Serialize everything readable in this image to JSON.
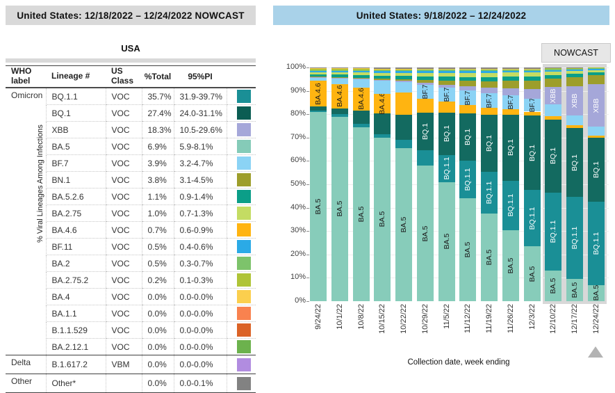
{
  "left_panel": {
    "header": "United States: 12/18/2022 – 12/24/2022 NOWCAST",
    "table_title": "USA",
    "columns": [
      "WHO label",
      "Lineage #",
      "US Class",
      "%Total",
      "95%PI",
      ""
    ],
    "rows": [
      {
        "who": "Omicron",
        "who_rowspan": 16,
        "lineage": "BQ.1.1",
        "us_class": "VOC",
        "total": "35.7%",
        "pi": "31.9-39.7%",
        "color": "#1A8F96",
        "group_start": true
      },
      {
        "lineage": "BQ.1",
        "us_class": "VOC",
        "total": "27.4%",
        "pi": "24.0-31.1%",
        "color": "#0B5D53"
      },
      {
        "lineage": "XBB",
        "us_class": "VOC",
        "total": "18.3%",
        "pi": "10.5-29.6%",
        "color": "#A5A7D9"
      },
      {
        "lineage": "BA.5",
        "us_class": "VOC",
        "total": "6.9%",
        "pi": "5.9-8.1%",
        "color": "#85CBB8"
      },
      {
        "lineage": "BF.7",
        "us_class": "VOC",
        "total": "3.9%",
        "pi": "3.2-4.7%",
        "color": "#8BD3F5"
      },
      {
        "lineage": "BN.1",
        "us_class": "VOC",
        "total": "3.8%",
        "pi": "3.1-4.5%",
        "color": "#9D9E2B"
      },
      {
        "lineage": "BA.5.2.6",
        "us_class": "VOC",
        "total": "1.1%",
        "pi": "0.9-1.4%",
        "color": "#0B9E88"
      },
      {
        "lineage": "BA.2.75",
        "us_class": "VOC",
        "total": "1.0%",
        "pi": "0.7-1.3%",
        "color": "#C4DC63"
      },
      {
        "lineage": "BA.4.6",
        "us_class": "VOC",
        "total": "0.7%",
        "pi": "0.6-0.9%",
        "color": "#FFB411"
      },
      {
        "lineage": "BF.11",
        "us_class": "VOC",
        "total": "0.5%",
        "pi": "0.4-0.6%",
        "color": "#2BAAE6"
      },
      {
        "lineage": "BA.2",
        "us_class": "VOC",
        "total": "0.5%",
        "pi": "0.3-0.7%",
        "color": "#7DC36B"
      },
      {
        "lineage": "BA.2.75.2",
        "us_class": "VOC",
        "total": "0.2%",
        "pi": "0.1-0.3%",
        "color": "#AFC437"
      },
      {
        "lineage": "BA.4",
        "us_class": "VOC",
        "total": "0.0%",
        "pi": "0.0-0.0%",
        "color": "#FBCF4E"
      },
      {
        "lineage": "BA.1.1",
        "us_class": "VOC",
        "total": "0.0%",
        "pi": "0.0-0.0%",
        "color": "#F9824F"
      },
      {
        "lineage": "B.1.1.529",
        "us_class": "VOC",
        "total": "0.0%",
        "pi": "0.0-0.0%",
        "color": "#DB6327"
      },
      {
        "lineage": "BA.2.12.1",
        "us_class": "VOC",
        "total": "0.0%",
        "pi": "0.0-0.0%",
        "color": "#6CB24D"
      },
      {
        "who": "Delta",
        "who_rowspan": 1,
        "lineage": "B.1.617.2",
        "us_class": "VBM",
        "total": "0.0%",
        "pi": "0.0-0.0%",
        "color": "#B18CE0",
        "group_start": true
      },
      {
        "who": "Other",
        "who_rowspan": 1,
        "lineage": "Other*",
        "us_class": "",
        "total": "0.0%",
        "pi": "0.0-0.1%",
        "color": "#828282",
        "group_start": true
      }
    ]
  },
  "right_panel": {
    "header": "United States: 9/18/2022 – 12/24/2022",
    "nowcast_label": "NOWCAST",
    "chart_data": {
      "type": "bar",
      "subtype": "stacked-100pct",
      "title": "United States: 9/18/2022 – 12/24/2022",
      "xlabel": "Collection date, week ending",
      "ylabel": "% Viral Lineages Among Infections",
      "ylim": [
        0,
        100
      ],
      "ytick_labels": [
        "0%",
        "10%",
        "20%",
        "30%",
        "40%",
        "50%",
        "60%",
        "70%",
        "80%",
        "90%",
        "100%"
      ],
      "grid": true,
      "categories": [
        "9/24/22",
        "10/1/22",
        "10/8/22",
        "10/15/22",
        "10/22/22",
        "10/29/22",
        "11/5/22",
        "11/12/22",
        "11/19/22",
        "11/26/22",
        "12/3/22",
        "12/10/22",
        "12/17/22",
        "12/24/22"
      ],
      "nowcast_week_indexes": [
        11,
        12,
        13
      ],
      "stack_order": "bottom to top as listed",
      "series": [
        {
          "name": "BA.5",
          "color": "#87CCBA",
          "label_color": "#1a1a1a",
          "label_weeks": [
            0,
            1,
            2,
            3,
            4,
            5,
            6,
            7,
            8,
            9,
            10,
            11,
            12,
            13
          ],
          "values": [
            81.0,
            79.0,
            74.5,
            70.0,
            65.5,
            58.0,
            51.0,
            44.0,
            37.5,
            30.5,
            23.5,
            13.0,
            9.5,
            6.9
          ]
        },
        {
          "name": "BQ.1.1",
          "color": "#1A8F96",
          "label_color": "#ffffff",
          "label_weeks": [
            6,
            7,
            8,
            9,
            10,
            11,
            12,
            13
          ],
          "values": [
            0.5,
            1.0,
            1.5,
            1.5,
            3.5,
            6.5,
            11.5,
            16.0,
            18.0,
            21.0,
            24.0,
            33.5,
            35.0,
            35.7
          ]
        },
        {
          "name": "BQ.1",
          "color": "#136A60",
          "label_color": "#ffffff",
          "label_weeks": [
            5,
            6,
            7,
            8,
            9,
            10,
            11,
            12,
            13
          ],
          "values": [
            1.7,
            2.5,
            5.5,
            8.8,
            10.8,
            16.2,
            18.3,
            20.4,
            24.4,
            28.3,
            31.9,
            31.3,
            29.7,
            27.4
          ]
        },
        {
          "name": "BA.4.6",
          "color": "#FFB411",
          "label_color": "#1a1a1a",
          "label_weeks": [
            0,
            1,
            2,
            3
          ],
          "values": [
            11.0,
            10.5,
            10.0,
            8.3,
            9.5,
            6.0,
            4.5,
            3.5,
            2.8,
            2.2,
            1.7,
            1.3,
            1.0,
            0.7
          ]
        },
        {
          "name": "BF.7",
          "color": "#8BD3F5",
          "label_color": "#1a1a1a",
          "label_weeks": [
            5,
            6,
            7,
            8,
            9,
            10
          ],
          "values": [
            1.5,
            2.5,
            3.5,
            5.7,
            4.5,
            6.0,
            6.0,
            6.2,
            6.2,
            6.0,
            5.5,
            5.0,
            4.4,
            3.9
          ]
        },
        {
          "name": "XBB",
          "color": "#A5A7D9",
          "label_color": "#ffffff",
          "label_weeks": [
            11,
            12,
            13
          ],
          "values": [
            0.1,
            0.1,
            0.2,
            0.3,
            0.5,
            0.8,
            1.3,
            1.8,
            2.4,
            3.0,
            4.3,
            7.5,
            12.5,
            18.3
          ]
        },
        {
          "name": "BN.1",
          "color": "#9D9E2B",
          "label_color": "#1a1a1a",
          "label_weeks": [],
          "values": [
            0.2,
            0.3,
            0.4,
            0.5,
            0.7,
            1.2,
            1.8,
            2.3,
            2.8,
            3.2,
            3.5,
            3.7,
            3.8,
            3.8
          ]
        },
        {
          "name": "BA.5.2.6",
          "color": "#0B9E88",
          "label_color": "#ffffff",
          "label_weeks": [],
          "values": [
            1.0,
            1.0,
            1.1,
            1.2,
            1.3,
            1.5,
            1.6,
            1.7,
            1.8,
            1.8,
            1.7,
            1.5,
            1.3,
            1.1
          ]
        },
        {
          "name": "BA.2.75",
          "color": "#C4DC63",
          "label_color": "#1a1a1a",
          "label_weeks": [],
          "values": [
            1.0,
            1.1,
            1.2,
            1.3,
            1.4,
            1.5,
            1.6,
            1.7,
            1.8,
            1.8,
            1.7,
            1.4,
            1.2,
            1.0
          ]
        },
        {
          "name": "BF.11",
          "color": "#2BAAE6",
          "label_color": "#1a1a1a",
          "label_weeks": [],
          "values": [
            0.6,
            0.6,
            0.7,
            0.8,
            0.8,
            0.9,
            0.9,
            0.9,
            0.9,
            0.8,
            0.8,
            0.7,
            0.6,
            0.5
          ]
        },
        {
          "name": "BA.2",
          "color": "#7DC36B",
          "label_color": "#1a1a1a",
          "label_weeks": [],
          "values": [
            0.3,
            0.3,
            0.3,
            0.4,
            0.4,
            0.4,
            0.5,
            0.5,
            0.5,
            0.5,
            0.5,
            0.5,
            0.5,
            0.5
          ]
        },
        {
          "name": "BA.2.75.2",
          "color": "#AFC437",
          "label_color": "#1a1a1a",
          "label_weeks": [],
          "values": [
            0.5,
            0.5,
            0.5,
            0.5,
            0.4,
            0.4,
            0.3,
            0.3,
            0.2,
            0.2,
            0.2,
            0.2,
            0.2,
            0.2
          ]
        },
        {
          "name": "BA.4",
          "color": "#FBCF4E",
          "label_color": "#1a1a1a",
          "label_weeks": [],
          "values": [
            0.3,
            0.3,
            0.2,
            0.2,
            0.2,
            0.1,
            0.1,
            0.1,
            0.1,
            0.1,
            0.1,
            0.0,
            0.0,
            0.0
          ]
        },
        {
          "name": "Other",
          "color": "#828282",
          "label_color": "#ffffff",
          "label_weeks": [],
          "values": [
            0.3,
            0.3,
            0.4,
            0.5,
            0.5,
            0.5,
            0.6,
            0.6,
            0.6,
            0.6,
            0.6,
            0.4,
            0.3,
            0.0
          ]
        }
      ]
    }
  }
}
